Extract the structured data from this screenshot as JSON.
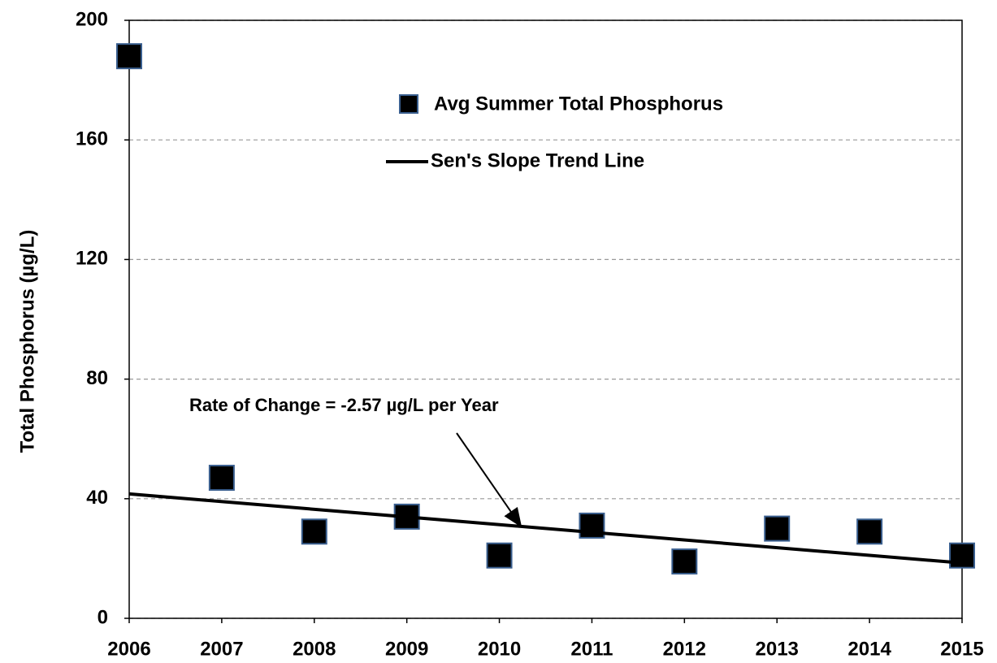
{
  "chart_data": {
    "type": "scatter",
    "ylabel": "Total Phosphorus (µg/L)",
    "xlim": [
      2006,
      2015
    ],
    "xticks": [
      2006,
      2007,
      2008,
      2009,
      2010,
      2011,
      2012,
      2013,
      2014,
      2015
    ],
    "ylim": [
      0,
      200
    ],
    "yticks": [
      0,
      40,
      80,
      120,
      160,
      200
    ],
    "grid": true,
    "series": [
      {
        "name": "Avg Summer Total Phosphorus",
        "color": "#000000",
        "marker": "square",
        "x": [
          2006,
          2007,
          2008,
          2009,
          2010,
          2011,
          2012,
          2013,
          2014,
          2015
        ],
        "values": [
          188,
          47,
          29,
          34,
          21,
          31,
          19,
          30,
          29,
          21
        ]
      },
      {
        "name": "Sen's Slope Trend Line",
        "color": "#000000",
        "marker": "line",
        "x": [
          2006,
          2015
        ],
        "values": [
          41.6,
          18.5
        ]
      }
    ],
    "annotation": "Rate of Change = -2.57 µg/L per Year"
  }
}
